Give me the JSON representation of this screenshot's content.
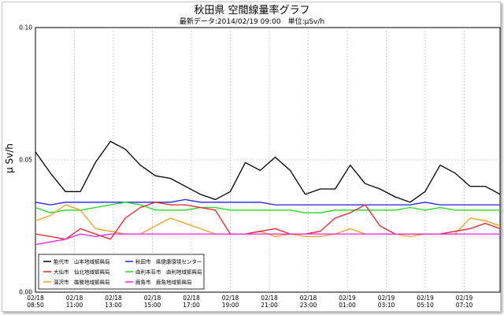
{
  "chart_data": {
    "type": "line",
    "title": "秋田県 空間線量率グラフ",
    "subtitle": "最新データ:2014/02/19 09:00　単位:μSv/h",
    "ylabel": "μ Sv/h",
    "xlabel": "",
    "ylim": [
      0.0,
      0.1
    ],
    "y_ticks": [
      "0.00",
      "0.05",
      "0.10"
    ],
    "grid": true,
    "legend_position": "bottom-left",
    "x_ticks": [
      {
        "date": "02/18",
        "time": "08:50"
      },
      {
        "date": "02/18",
        "time": "11:00"
      },
      {
        "date": "02/18",
        "time": "13:00"
      },
      {
        "date": "02/18",
        "time": "15:00"
      },
      {
        "date": "02/18",
        "time": "17:00"
      },
      {
        "date": "02/18",
        "time": "19:00"
      },
      {
        "date": "02/18",
        "time": "21:00"
      },
      {
        "date": "02/18",
        "time": "23:00"
      },
      {
        "date": "02/19",
        "time": "01:00"
      },
      {
        "date": "02/19",
        "time": "03:10"
      },
      {
        "date": "02/19",
        "time": "05:10"
      },
      {
        "date": "02/19",
        "time": "07:10"
      }
    ],
    "series": [
      {
        "name": "能代市　山本地域振興局",
        "color": "#000000",
        "values": [
          0.053,
          0.045,
          0.038,
          0.038,
          0.049,
          0.057,
          0.054,
          0.048,
          0.044,
          0.043,
          0.04,
          0.037,
          0.035,
          0.038,
          0.049,
          0.046,
          0.051,
          0.046,
          0.037,
          0.039,
          0.039,
          0.048,
          0.041,
          0.039,
          0.036,
          0.034,
          0.038,
          0.048,
          0.045,
          0.04,
          0.04,
          0.037
        ]
      },
      {
        "name": "大仙市　仙北地域振興局",
        "color": "#ee2222",
        "values": [
          0.022,
          0.021,
          0.02,
          0.024,
          0.022,
          0.02,
          0.028,
          0.032,
          0.034,
          0.033,
          0.033,
          0.032,
          0.031,
          0.022,
          0.022,
          0.023,
          0.024,
          0.022,
          0.022,
          0.023,
          0.028,
          0.03,
          0.033,
          0.025,
          0.022,
          0.022,
          0.022,
          0.022,
          0.023,
          0.024,
          0.026,
          0.024
        ]
      },
      {
        "name": "湯沢市　雄勝地域振興局",
        "color": "#f0a020",
        "values": [
          0.027,
          0.029,
          0.033,
          0.031,
          0.024,
          0.023,
          0.022,
          0.022,
          0.025,
          0.028,
          0.026,
          0.024,
          0.022,
          0.022,
          0.022,
          0.023,
          0.021,
          0.022,
          0.021,
          0.021,
          0.022,
          0.024,
          0.022,
          0.022,
          0.022,
          0.021,
          0.022,
          0.022,
          0.022,
          0.028,
          0.027,
          0.025
        ]
      },
      {
        "name": "秋田市　県健康環境センター",
        "color": "#2222ee",
        "values": [
          0.034,
          0.033,
          0.034,
          0.034,
          0.034,
          0.034,
          0.034,
          0.034,
          0.034,
          0.034,
          0.035,
          0.034,
          0.034,
          0.034,
          0.034,
          0.034,
          0.033,
          0.033,
          0.033,
          0.033,
          0.033,
          0.033,
          0.033,
          0.033,
          0.033,
          0.033,
          0.034,
          0.033,
          0.033,
          0.033,
          0.033,
          0.033
        ]
      },
      {
        "name": "由利本荘市　由利地域振興局",
        "color": "#22dd22",
        "values": [
          0.032,
          0.03,
          0.031,
          0.031,
          0.032,
          0.033,
          0.034,
          0.033,
          0.031,
          0.031,
          0.031,
          0.032,
          0.032,
          0.031,
          0.031,
          0.031,
          0.031,
          0.031,
          0.03,
          0.03,
          0.031,
          0.031,
          0.031,
          0.031,
          0.031,
          0.032,
          0.031,
          0.032,
          0.031,
          0.031,
          0.031,
          0.031
        ]
      },
      {
        "name": "鹿角市　鹿角地域振興局",
        "color": "#ee22ee",
        "values": [
          0.018,
          0.019,
          0.02,
          0.022,
          0.021,
          0.022,
          0.022,
          0.022,
          0.022,
          0.022,
          0.022,
          0.022,
          0.022,
          0.022,
          0.022,
          0.022,
          0.022,
          0.022,
          0.022,
          0.022,
          0.022,
          0.022,
          0.022,
          0.022,
          0.022,
          0.022,
          0.022,
          0.022,
          0.022,
          0.022,
          0.022,
          0.022
        ]
      }
    ]
  }
}
